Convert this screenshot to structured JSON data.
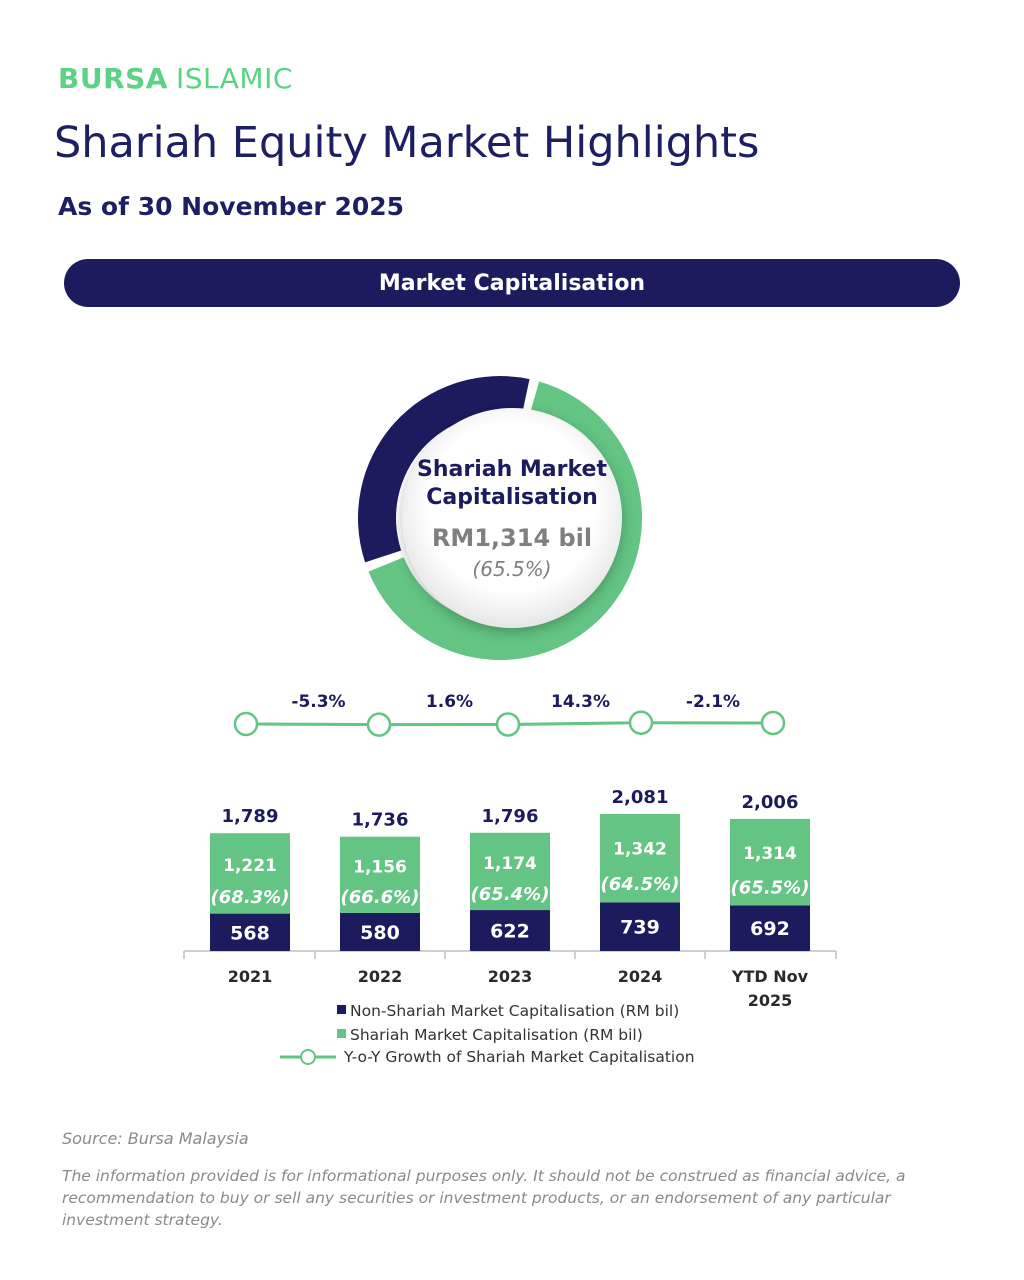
{
  "brand": {
    "part1": "BURSA",
    "part2": "ISLAMIC"
  },
  "header": {
    "title": "Shariah Equity Market Highlights",
    "subtitle": "As of 30 November 2025",
    "banner": "Market Capitalisation"
  },
  "donut": {
    "title_line1": "Shariah Market",
    "title_line2": "Capitalisation",
    "value": "RM1,314 bil",
    "percent": "(65.5%)",
    "shariah_share": 65.5
  },
  "colors": {
    "navy": "#1b1b5e",
    "green": "#63c483",
    "brand_green": "#5cd384"
  },
  "chart_data": {
    "type": "bar",
    "stacked": true,
    "categories": [
      "2021",
      "2022",
      "2023",
      "2024",
      "YTD Nov 2025"
    ],
    "category_lines": [
      [
        "2021"
      ],
      [
        "2022"
      ],
      [
        "2023"
      ],
      [
        "2024"
      ],
      [
        "YTD Nov",
        "2025"
      ]
    ],
    "totals": [
      "1,789",
      "1,736",
      "1,796",
      "2,081",
      "2,006"
    ],
    "total_values": [
      1789,
      1736,
      1796,
      2081,
      2006
    ],
    "series": [
      {
        "name": "Non-Shariah Market Capitalisation (RM bil)",
        "values": [
          568,
          580,
          622,
          739,
          692
        ],
        "labels": [
          "568",
          "580",
          "622",
          "739",
          "692"
        ]
      },
      {
        "name": "Shariah Market Capitalisation (RM bil)",
        "values": [
          1221,
          1156,
          1174,
          1342,
          1314
        ],
        "labels": [
          "1,221",
          "1,156",
          "1,174",
          "1,342",
          "1,314"
        ],
        "percent_labels": [
          "(68.3%)",
          "(66.6%)",
          "(65.4%)",
          "(64.5%)",
          "(65.5%)"
        ]
      }
    ],
    "growth": {
      "name": "Y-o-Y Growth of Shariah Market Capitalisation",
      "values": [
        -5.3,
        1.6,
        14.3,
        -2.1
      ],
      "labels": [
        "-5.3%",
        "1.6%",
        "14.3%",
        "-2.1%"
      ]
    }
  },
  "footer": {
    "source": "Source: Bursa Malaysia",
    "disclaimer": "The information provided is for informational purposes only. It should not be construed as financial advice, a recommendation to buy or sell any securities or investment products, or an endorsement of any particular investment strategy."
  }
}
